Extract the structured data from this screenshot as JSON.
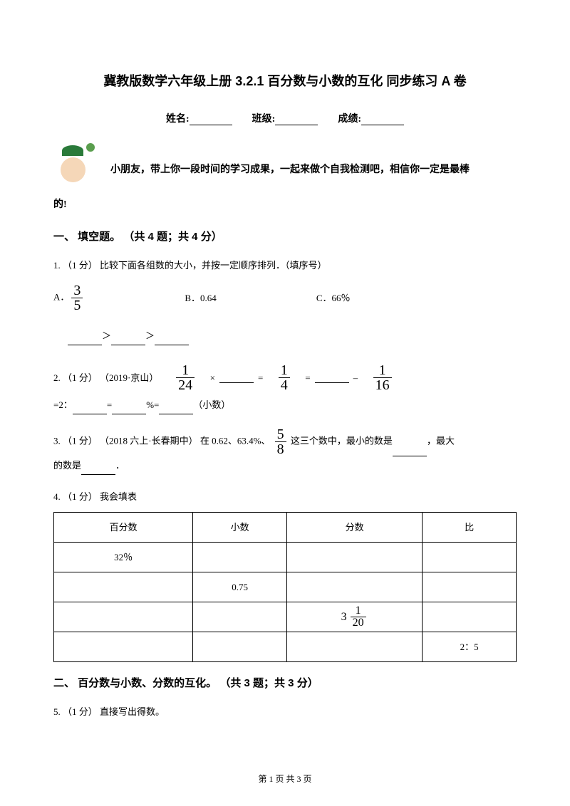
{
  "title": "冀教版数学六年级上册 3.2.1 百分数与小数的互化 同步练习 A 卷",
  "info": {
    "name_label": "姓名:",
    "class_label": "班级:",
    "score_label": "成绩:"
  },
  "intro": {
    "line1": "小朋友，带上你一段时间的学习成果，一起来做个自我检测吧，相信你一定是最棒",
    "line2": "的!"
  },
  "section1": {
    "title": "一、 填空题。 （共 4 题；共 4 分）",
    "q1": {
      "stem": "1. （1 分） 比较下面各组数的大小，并按一定顺序排列．（填序号）",
      "optA_prefix": "A．",
      "optA_frac_num": "3",
      "optA_frac_den": "5",
      "optB": "B．0.64",
      "optC": "C．66％",
      "gt": "＞"
    },
    "q2": {
      "prefix": "2. （1 分） （2019·京山）",
      "f1_num": "1",
      "f1_den": "24",
      "times": "×",
      "eq": "=",
      "f2_num": "1",
      "f2_den": "4",
      "minus": "–",
      "f3_num": "1",
      "f3_den": "16",
      "line2_a": "=2：",
      "line2_b": "=",
      "line2_c": "%=",
      "line2_d": "（小数）"
    },
    "q3": {
      "text_a": "3. （1 分） （2018 六上·长春期中） 在 0.62、63.4%、",
      "frac_num": "5",
      "frac_den": "8",
      "text_b": " 这三个数中，最小的数是",
      "text_c": "，最大",
      "text_d": "的数是",
      "text_e": "．"
    },
    "q4": {
      "stem": "4. （1 分） 我会填表",
      "table": {
        "headers": [
          "百分数",
          "小数",
          "分数",
          "比"
        ],
        "row1_c1": "32％",
        "row2_c2": "0.75",
        "row3_whole": "3",
        "row3_num": "1",
        "row3_den": "20",
        "row4_c4": "2：5"
      }
    }
  },
  "section2": {
    "title": "二、 百分数与小数、分数的互化。 （共 3 题；共 3 分）",
    "q5": {
      "stem": "5. （1 分） 直接写出得数。"
    }
  },
  "footer": "第 1 页 共 3 页"
}
